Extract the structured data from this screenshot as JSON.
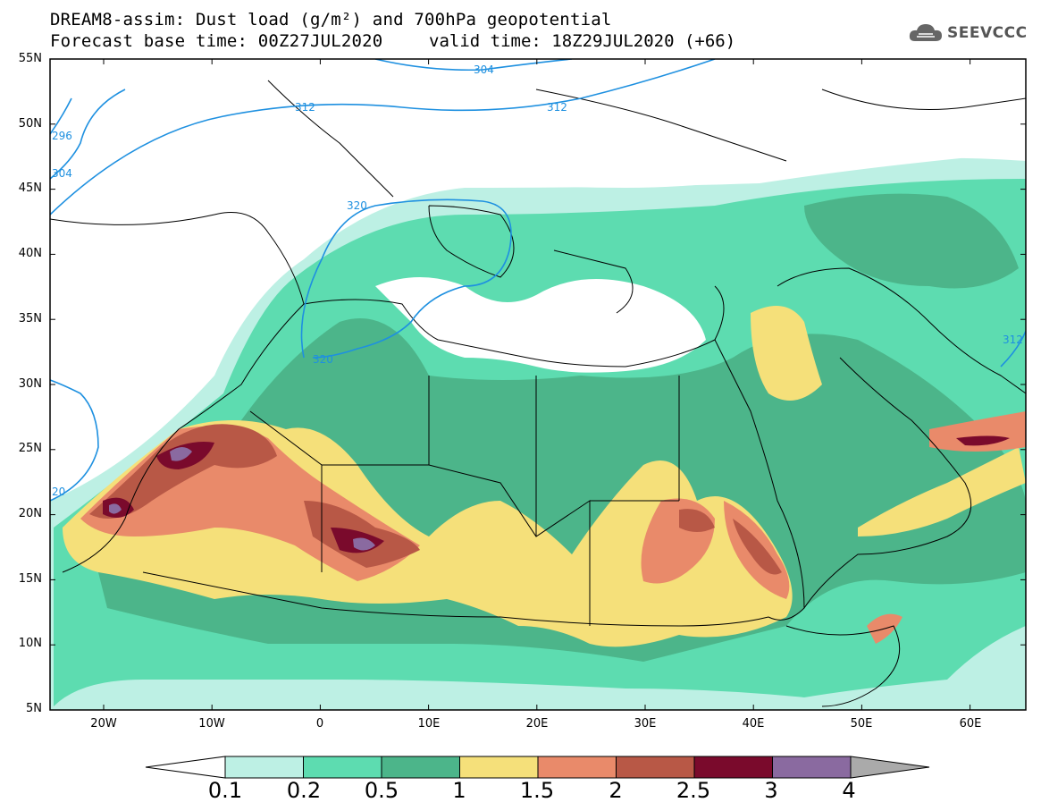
{
  "header": {
    "title_line1": "DREAM8-assim: Dust load (g/m²) and 700hPa geopotential",
    "title_line2": "Forecast base time: 00Z27JUL2020",
    "valid_time": "valid time: 18Z29JUL2020 (+66)",
    "logo_text": "SEEVCCC"
  },
  "map": {
    "lat_labels": [
      "55N",
      "50N",
      "45N",
      "40N",
      "35N",
      "30N",
      "25N",
      "20N",
      "15N",
      "10N",
      "5N"
    ],
    "lon_labels": [
      "20W",
      "10W",
      "0",
      "10E",
      "20E",
      "30E",
      "40E",
      "50E",
      "60E"
    ],
    "contour_labels": [
      "304",
      "312",
      "312",
      "296",
      "304",
      "320",
      "320",
      "312",
      "20"
    ]
  },
  "colorbar": {
    "ticks": [
      "0.1",
      "0.2",
      "0.5",
      "1",
      "1.5",
      "2",
      "2.5",
      "3",
      "4"
    ],
    "colors": [
      "#bdf0e4",
      "#5ddcb0",
      "#4cb58a",
      "#f5e07a",
      "#e98a6a",
      "#b85846",
      "#7a0a2c",
      "#8a6aa0"
    ]
  },
  "colors": {
    "light_teal": "#bdf0e4",
    "teal": "#5ddcb0",
    "dark_teal": "#4cb58a",
    "yellow": "#f5e07a",
    "salmon": "#e98a6a",
    "brown": "#b85846",
    "maroon": "#7a0a2c",
    "purple": "#8a6aa0",
    "contour_blue": "#1e90e0"
  }
}
